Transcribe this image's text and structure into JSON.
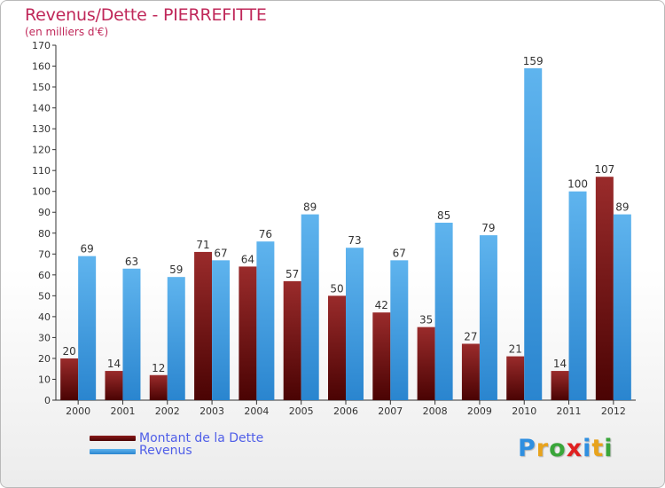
{
  "header": {
    "title": "Revenus/Dette - PIERREFITTE",
    "subtitle": "(en milliers d'€)"
  },
  "legend": {
    "items": [
      {
        "label": "Montant de la Dette",
        "color": "#6b0a0a"
      },
      {
        "label": "Revenus",
        "color": "#3b9be0"
      }
    ]
  },
  "logo": {
    "letters": [
      {
        "ch": "P",
        "color": "#2f8fe0"
      },
      {
        "ch": "r",
        "color": "#e8a31c"
      },
      {
        "ch": "o",
        "color": "#3aa63a"
      },
      {
        "ch": "x",
        "color": "#e02020"
      },
      {
        "ch": "i",
        "color": "#2f8fe0"
      },
      {
        "ch": "t",
        "color": "#e8a31c"
      },
      {
        "ch": "i",
        "color": "#3aa63a"
      }
    ]
  },
  "chart_data": {
    "type": "bar",
    "title": "Revenus/Dette - PIERREFITTE",
    "subtitle": "(en milliers d'€)",
    "categories": [
      "2000",
      "2001",
      "2002",
      "2003",
      "2004",
      "2005",
      "2006",
      "2007",
      "2008",
      "2009",
      "2010",
      "2011",
      "2012"
    ],
    "series": [
      {
        "name": "Montant de la Dette",
        "color": "#6b0a0a",
        "values": [
          20,
          14,
          12,
          71,
          64,
          57,
          50,
          42,
          35,
          27,
          21,
          14,
          107
        ]
      },
      {
        "name": "Revenus",
        "color": "#3b9be0",
        "values": [
          69,
          63,
          59,
          67,
          76,
          89,
          73,
          67,
          85,
          79,
          159,
          100,
          89
        ]
      }
    ],
    "ylim": [
      0,
      170
    ],
    "yticks": [
      0,
      10,
      20,
      30,
      40,
      50,
      60,
      70,
      80,
      90,
      100,
      110,
      120,
      130,
      140,
      150,
      160,
      170
    ],
    "grid": false,
    "legend": "bottom-left"
  }
}
